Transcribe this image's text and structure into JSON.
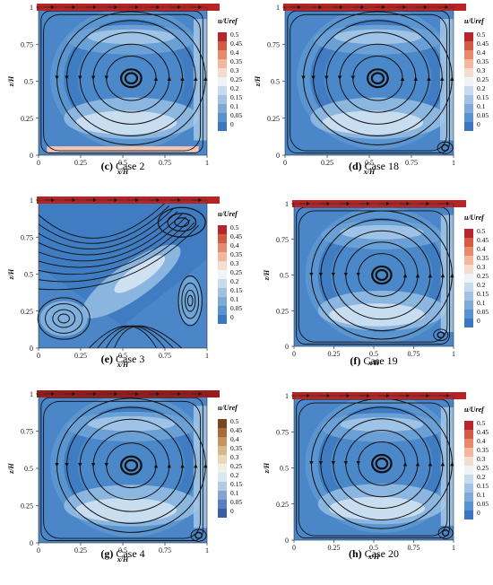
{
  "figure": {
    "legend_title": "u/Uref",
    "legend_levels": [
      "0.5",
      "0.45",
      "0.4",
      "0.35",
      "0.3",
      "0.25",
      "0.2",
      "0.15",
      "0.1",
      "0.05",
      "0"
    ],
    "x_axis_label": "x/H",
    "y_axis_label": "z/H",
    "x_ticks": [
      "0",
      "0.25",
      "0.5",
      "0.75",
      "1"
    ],
    "y_ticks": [
      "0",
      "0.25",
      "0.5",
      "0.75",
      "1"
    ],
    "colors": {
      "lid": "#b22222",
      "low": "#2f6fb5",
      "mid": "#dce9f5",
      "high": "#c0392b"
    }
  },
  "chart_data": [
    {
      "type": "contour",
      "panel": "(c)",
      "caption": "Case 2",
      "tag": "(c)",
      "name": "Case 2",
      "xlabel": "x/H",
      "ylabel": "z/H",
      "xlim": [
        0,
        1
      ],
      "ylim": [
        0,
        1
      ],
      "legend_title": "u/Uref",
      "levels": [
        0,
        0.05,
        0.1,
        0.15,
        0.2,
        0.25,
        0.3,
        0.35,
        0.4,
        0.45,
        0.5
      ],
      "colormap": "blue-red",
      "primary_vortex_center": [
        0.55,
        0.52
      ],
      "secondary_vortices": []
    },
    {
      "type": "contour",
      "panel": "(d)",
      "caption": "Case 18",
      "tag": "(d)",
      "name": "Case 18",
      "xlabel": "x/H",
      "ylabel": "z/H",
      "xlim": [
        0,
        1
      ],
      "ylim": [
        0,
        1
      ],
      "legend_title": "u/Uref",
      "levels": [
        0,
        0.05,
        0.1,
        0.15,
        0.2,
        0.25,
        0.3,
        0.35,
        0.4,
        0.45,
        0.5
      ],
      "colormap": "blue-red",
      "primary_vortex_center": [
        0.55,
        0.52
      ],
      "secondary_vortices": [
        [
          0.95,
          0.05
        ]
      ]
    },
    {
      "type": "contour",
      "panel": "(e)",
      "caption": "Case 3",
      "tag": "(e)",
      "name": "Case 3",
      "xlabel": "x/H",
      "ylabel": "z/H",
      "xlim": [
        0,
        1
      ],
      "ylim": [
        0,
        1
      ],
      "legend_title": "u/Uref",
      "levels": [
        0,
        0.05,
        0.1,
        0.15,
        0.2,
        0.25,
        0.3,
        0.35,
        0.4,
        0.45,
        0.5
      ],
      "colormap": "blue-red",
      "primary_vortex_center": [
        0.85,
        0.85
      ],
      "secondary_vortices": [
        [
          0.15,
          0.2
        ],
        [
          0.9,
          0.32
        ]
      ]
    },
    {
      "type": "contour",
      "panel": "(f)",
      "caption": "Case 19",
      "tag": "(f)",
      "name": "Case 19",
      "xlabel": "x/H",
      "ylabel": "z/H",
      "xlim": [
        0,
        1
      ],
      "ylim": [
        0,
        1
      ],
      "legend_title": "u/Uref",
      "levels": [
        0,
        0.05,
        0.1,
        0.15,
        0.2,
        0.25,
        0.3,
        0.35,
        0.4,
        0.45,
        0.5
      ],
      "colormap": "blue-red",
      "primary_vortex_center": [
        0.55,
        0.5
      ],
      "secondary_vortices": [
        [
          0.92,
          0.08
        ]
      ]
    },
    {
      "type": "contour",
      "panel": "(g)",
      "caption": "Case 4",
      "tag": "(g)",
      "name": "Case 4",
      "xlabel": "x/H",
      "ylabel": "z/H",
      "xlim": [
        0,
        1
      ],
      "ylim": [
        0,
        1
      ],
      "legend_title": "u/Uref",
      "levels": [
        0,
        0.05,
        0.1,
        0.15,
        0.2,
        0.25,
        0.3,
        0.35,
        0.4,
        0.45,
        0.5
      ],
      "colormap": "blue-brown",
      "primary_vortex_center": [
        0.55,
        0.52
      ],
      "secondary_vortices": [
        [
          0.95,
          0.05
        ]
      ]
    },
    {
      "type": "contour",
      "panel": "(h)",
      "caption": "Case 20",
      "tag": "(h)",
      "name": "Case 20",
      "xlabel": "x/H",
      "ylabel": "z/H",
      "xlim": [
        0,
        1
      ],
      "ylim": [
        0,
        1
      ],
      "legend_title": "u/Uref",
      "levels": [
        0,
        0.05,
        0.1,
        0.15,
        0.2,
        0.25,
        0.3,
        0.35,
        0.4,
        0.45,
        0.5
      ],
      "colormap": "blue-red",
      "primary_vortex_center": [
        0.55,
        0.53
      ],
      "secondary_vortices": [
        [
          0.95,
          0.05
        ]
      ]
    }
  ]
}
